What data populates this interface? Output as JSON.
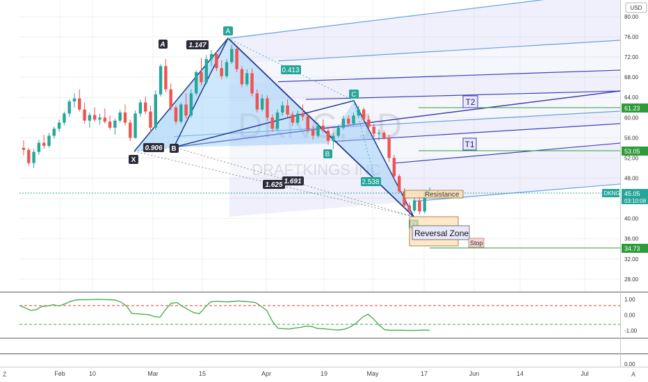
{
  "symbol": "DKNG",
  "watermark": {
    "main": "DKNG, 1D",
    "sub": "DRAFTKINGS INC"
  },
  "currency": "USD",
  "colors": {
    "up": "#26a69a",
    "down": "#ef5350",
    "pattern_fill": "#90caf9",
    "pattern_line": "#1e3a8a",
    "fork_light": "#64a0e0",
    "fork_dark": "#3f3fb5",
    "target_line": "#2e9a3a",
    "oscillator": "#4caf50",
    "current_price": "#26a69a"
  },
  "price_axis": {
    "ticks": [
      "28.00",
      "32.00",
      "36.00",
      "40.00",
      "44.00",
      "48.00",
      "52.00",
      "56.00",
      "60.00",
      "64.00",
      "68.00",
      "72.00",
      "76.00",
      "80.00"
    ],
    "current_price_label": "45.05",
    "countdown_label": "03:10:08",
    "tags": [
      {
        "label": "61.23",
        "kind": "target"
      },
      {
        "label": "53.05",
        "kind": "target"
      },
      {
        "label": "34.73",
        "kind": "stop"
      }
    ]
  },
  "time_axis": {
    "ticks": [
      "Feb",
      "10",
      "Mar",
      "15",
      "Apr",
      "19",
      "May",
      "17",
      "Jun",
      "14",
      "Jul"
    ]
  },
  "oscillator": {
    "ticks": [
      "1.00",
      "0.00",
      "-1.00"
    ],
    "upper_level": 0.5,
    "lower_level": -0.5,
    "values": [
      0.62,
      0.45,
      0.3,
      0.34,
      0.55,
      0.58,
      0.66,
      0.58,
      0.7,
      0.86,
      0.96,
      0.98,
      0.98,
      0.99,
      1.0,
      0.99,
      0.98,
      0.96,
      0.84,
      0.6,
      0.1,
      0.08,
      0.05,
      0.02,
      -0.1,
      -0.15,
      0.35,
      0.75,
      0.8,
      0.56,
      0.35,
      0.15,
      0.08,
      0.48,
      0.84,
      0.88,
      0.86,
      0.84,
      0.87,
      0.9,
      0.87,
      0.84,
      0.8,
      0.55,
      0.3,
      -0.4,
      -0.85,
      -0.88,
      -0.9,
      -0.84,
      -0.8,
      -0.72,
      -0.74,
      -0.86,
      -0.88,
      -0.92,
      -0.95,
      -0.96,
      -0.9,
      -0.75,
      -0.5,
      -0.15,
      0.05,
      -0.25,
      -0.65,
      -0.95,
      -0.98,
      -0.98,
      -0.98,
      -0.99,
      -0.99,
      -0.98,
      -0.97,
      -0.98
    ],
    "bottom_tick": "0.00"
  },
  "harmonic": {
    "points": [
      {
        "label": "X",
        "price": 53.0
      },
      {
        "label": "A",
        "price": 74.4
      },
      {
        "label": "B",
        "price": 53.9
      },
      {
        "label": "C",
        "price": 62.3
      },
      {
        "label": "D",
        "price": 40.6
      }
    ],
    "ratios": [
      "0.906",
      "1.147",
      "0.413",
      "2.538",
      "1.625",
      "1.691"
    ]
  },
  "annotations": {
    "t2": "T2",
    "t1": "T1",
    "resistance": "Resistance",
    "reversal_zone": "Reversal Zone",
    "stop": "Stop"
  },
  "bottom_bar": {
    "left": "Z",
    "right": "A"
  },
  "chart_data": {
    "type": "candlestick",
    "y_range": [
      25.5,
      83.3
    ],
    "x_ticks": [
      "Feb",
      "10",
      "Mar",
      "15",
      "Apr",
      "19",
      "May",
      "17",
      "Jun",
      "14",
      "Jul"
    ],
    "series": [
      {
        "name": "DKNG",
        "ohlc": [
          [
            54.0,
            55.5,
            52.5,
            53.6
          ],
          [
            53.6,
            54.0,
            50.5,
            51.0
          ],
          [
            51.0,
            53.8,
            50.0,
            53.2
          ],
          [
            53.2,
            55.6,
            52.6,
            55.0
          ],
          [
            55.0,
            56.6,
            53.8,
            54.4
          ],
          [
            54.4,
            57.0,
            54.0,
            56.4
          ],
          [
            56.4,
            58.2,
            55.8,
            57.8
          ],
          [
            57.8,
            59.6,
            57.2,
            59.0
          ],
          [
            59.0,
            61.2,
            58.5,
            60.8
          ],
          [
            60.8,
            63.6,
            60.2,
            63.2
          ],
          [
            63.2,
            64.8,
            62.0,
            63.8
          ],
          [
            63.8,
            65.6,
            61.2,
            61.6
          ],
          [
            61.6,
            63.0,
            58.8,
            59.4
          ],
          [
            59.4,
            61.0,
            58.0,
            60.5
          ],
          [
            60.5,
            62.0,
            59.2,
            59.6
          ],
          [
            59.6,
            60.8,
            58.6,
            60.0
          ],
          [
            60.0,
            61.8,
            58.8,
            59.2
          ],
          [
            59.2,
            60.4,
            57.6,
            58.0
          ],
          [
            58.0,
            59.8,
            56.6,
            59.4
          ],
          [
            59.4,
            61.6,
            59.0,
            61.0
          ],
          [
            61.0,
            62.6,
            58.4,
            59.0
          ],
          [
            59.0,
            59.6,
            55.4,
            56.0
          ],
          [
            56.0,
            61.4,
            55.8,
            60.8
          ],
          [
            60.8,
            63.6,
            60.2,
            63.0
          ],
          [
            63.0,
            64.2,
            60.6,
            61.2
          ],
          [
            61.2,
            62.4,
            57.0,
            58.0
          ],
          [
            58.0,
            65.4,
            57.6,
            64.6
          ],
          [
            64.6,
            70.6,
            64.2,
            70.2
          ],
          [
            70.2,
            71.6,
            65.0,
            65.6
          ],
          [
            65.6,
            66.8,
            61.4,
            62.0
          ],
          [
            62.0,
            62.4,
            58.6,
            59.2
          ],
          [
            59.2,
            63.0,
            58.8,
            62.6
          ],
          [
            62.6,
            64.8,
            59.8,
            60.4
          ],
          [
            60.4,
            65.6,
            60.0,
            64.8
          ],
          [
            64.8,
            69.4,
            64.4,
            69.0
          ],
          [
            69.0,
            71.8,
            66.4,
            67.0
          ],
          [
            67.0,
            72.4,
            66.6,
            71.6
          ],
          [
            71.6,
            73.4,
            70.2,
            72.6
          ],
          [
            72.6,
            73.2,
            69.2,
            69.8
          ],
          [
            69.8,
            71.4,
            67.6,
            68.2
          ],
          [
            68.2,
            71.6,
            67.8,
            71.0
          ],
          [
            71.0,
            74.4,
            70.6,
            73.6
          ],
          [
            73.6,
            74.0,
            69.0,
            69.6
          ],
          [
            69.6,
            70.2,
            66.0,
            66.6
          ],
          [
            66.6,
            69.6,
            66.2,
            68.8
          ],
          [
            68.8,
            69.8,
            64.2,
            64.8
          ],
          [
            64.8,
            65.6,
            61.0,
            61.6
          ],
          [
            61.6,
            64.6,
            61.2,
            63.8
          ],
          [
            63.8,
            64.4,
            59.4,
            60.0
          ],
          [
            60.0,
            60.6,
            57.2,
            57.8
          ],
          [
            57.8,
            61.6,
            57.4,
            61.0
          ],
          [
            61.0,
            63.2,
            60.4,
            62.4
          ],
          [
            62.4,
            63.6,
            60.0,
            60.6
          ],
          [
            60.6,
            61.2,
            58.4,
            59.0
          ],
          [
            59.0,
            61.4,
            58.6,
            60.8
          ],
          [
            60.8,
            62.6,
            59.4,
            60.2
          ],
          [
            60.2,
            60.8,
            57.0,
            57.6
          ],
          [
            57.6,
            58.4,
            55.6,
            56.4
          ],
          [
            56.4,
            59.0,
            56.0,
            58.4
          ],
          [
            58.4,
            59.6,
            57.0,
            57.4
          ],
          [
            57.4,
            58.0,
            54.6,
            55.4
          ],
          [
            55.4,
            57.0,
            53.8,
            56.4
          ],
          [
            56.4,
            58.6,
            56.0,
            58.0
          ],
          [
            58.0,
            60.4,
            57.6,
            59.8
          ],
          [
            59.8,
            60.4,
            58.2,
            58.8
          ],
          [
            58.8,
            61.0,
            58.4,
            60.4
          ],
          [
            60.4,
            62.3,
            60.0,
            61.6
          ],
          [
            61.6,
            62.0,
            59.2,
            59.6
          ],
          [
            59.6,
            60.4,
            57.6,
            58.2
          ],
          [
            58.2,
            58.8,
            56.2,
            56.8
          ],
          [
            56.8,
            57.6,
            55.4,
            57.0
          ],
          [
            57.0,
            57.4,
            55.6,
            56.0
          ],
          [
            56.0,
            56.6,
            51.2,
            52.0
          ],
          [
            52.0,
            52.6,
            47.8,
            48.4
          ],
          [
            48.4,
            48.8,
            45.0,
            45.4
          ],
          [
            45.4,
            46.0,
            42.0,
            42.6
          ],
          [
            42.6,
            43.2,
            40.6,
            41.6
          ],
          [
            41.6,
            44.2,
            41.2,
            43.6
          ],
          [
            43.6,
            44.4,
            40.8,
            41.4
          ],
          [
            41.4,
            45.4,
            41.0,
            45.0
          ],
          [
            45.0,
            46.2,
            44.0,
            45.05
          ]
        ]
      }
    ]
  }
}
